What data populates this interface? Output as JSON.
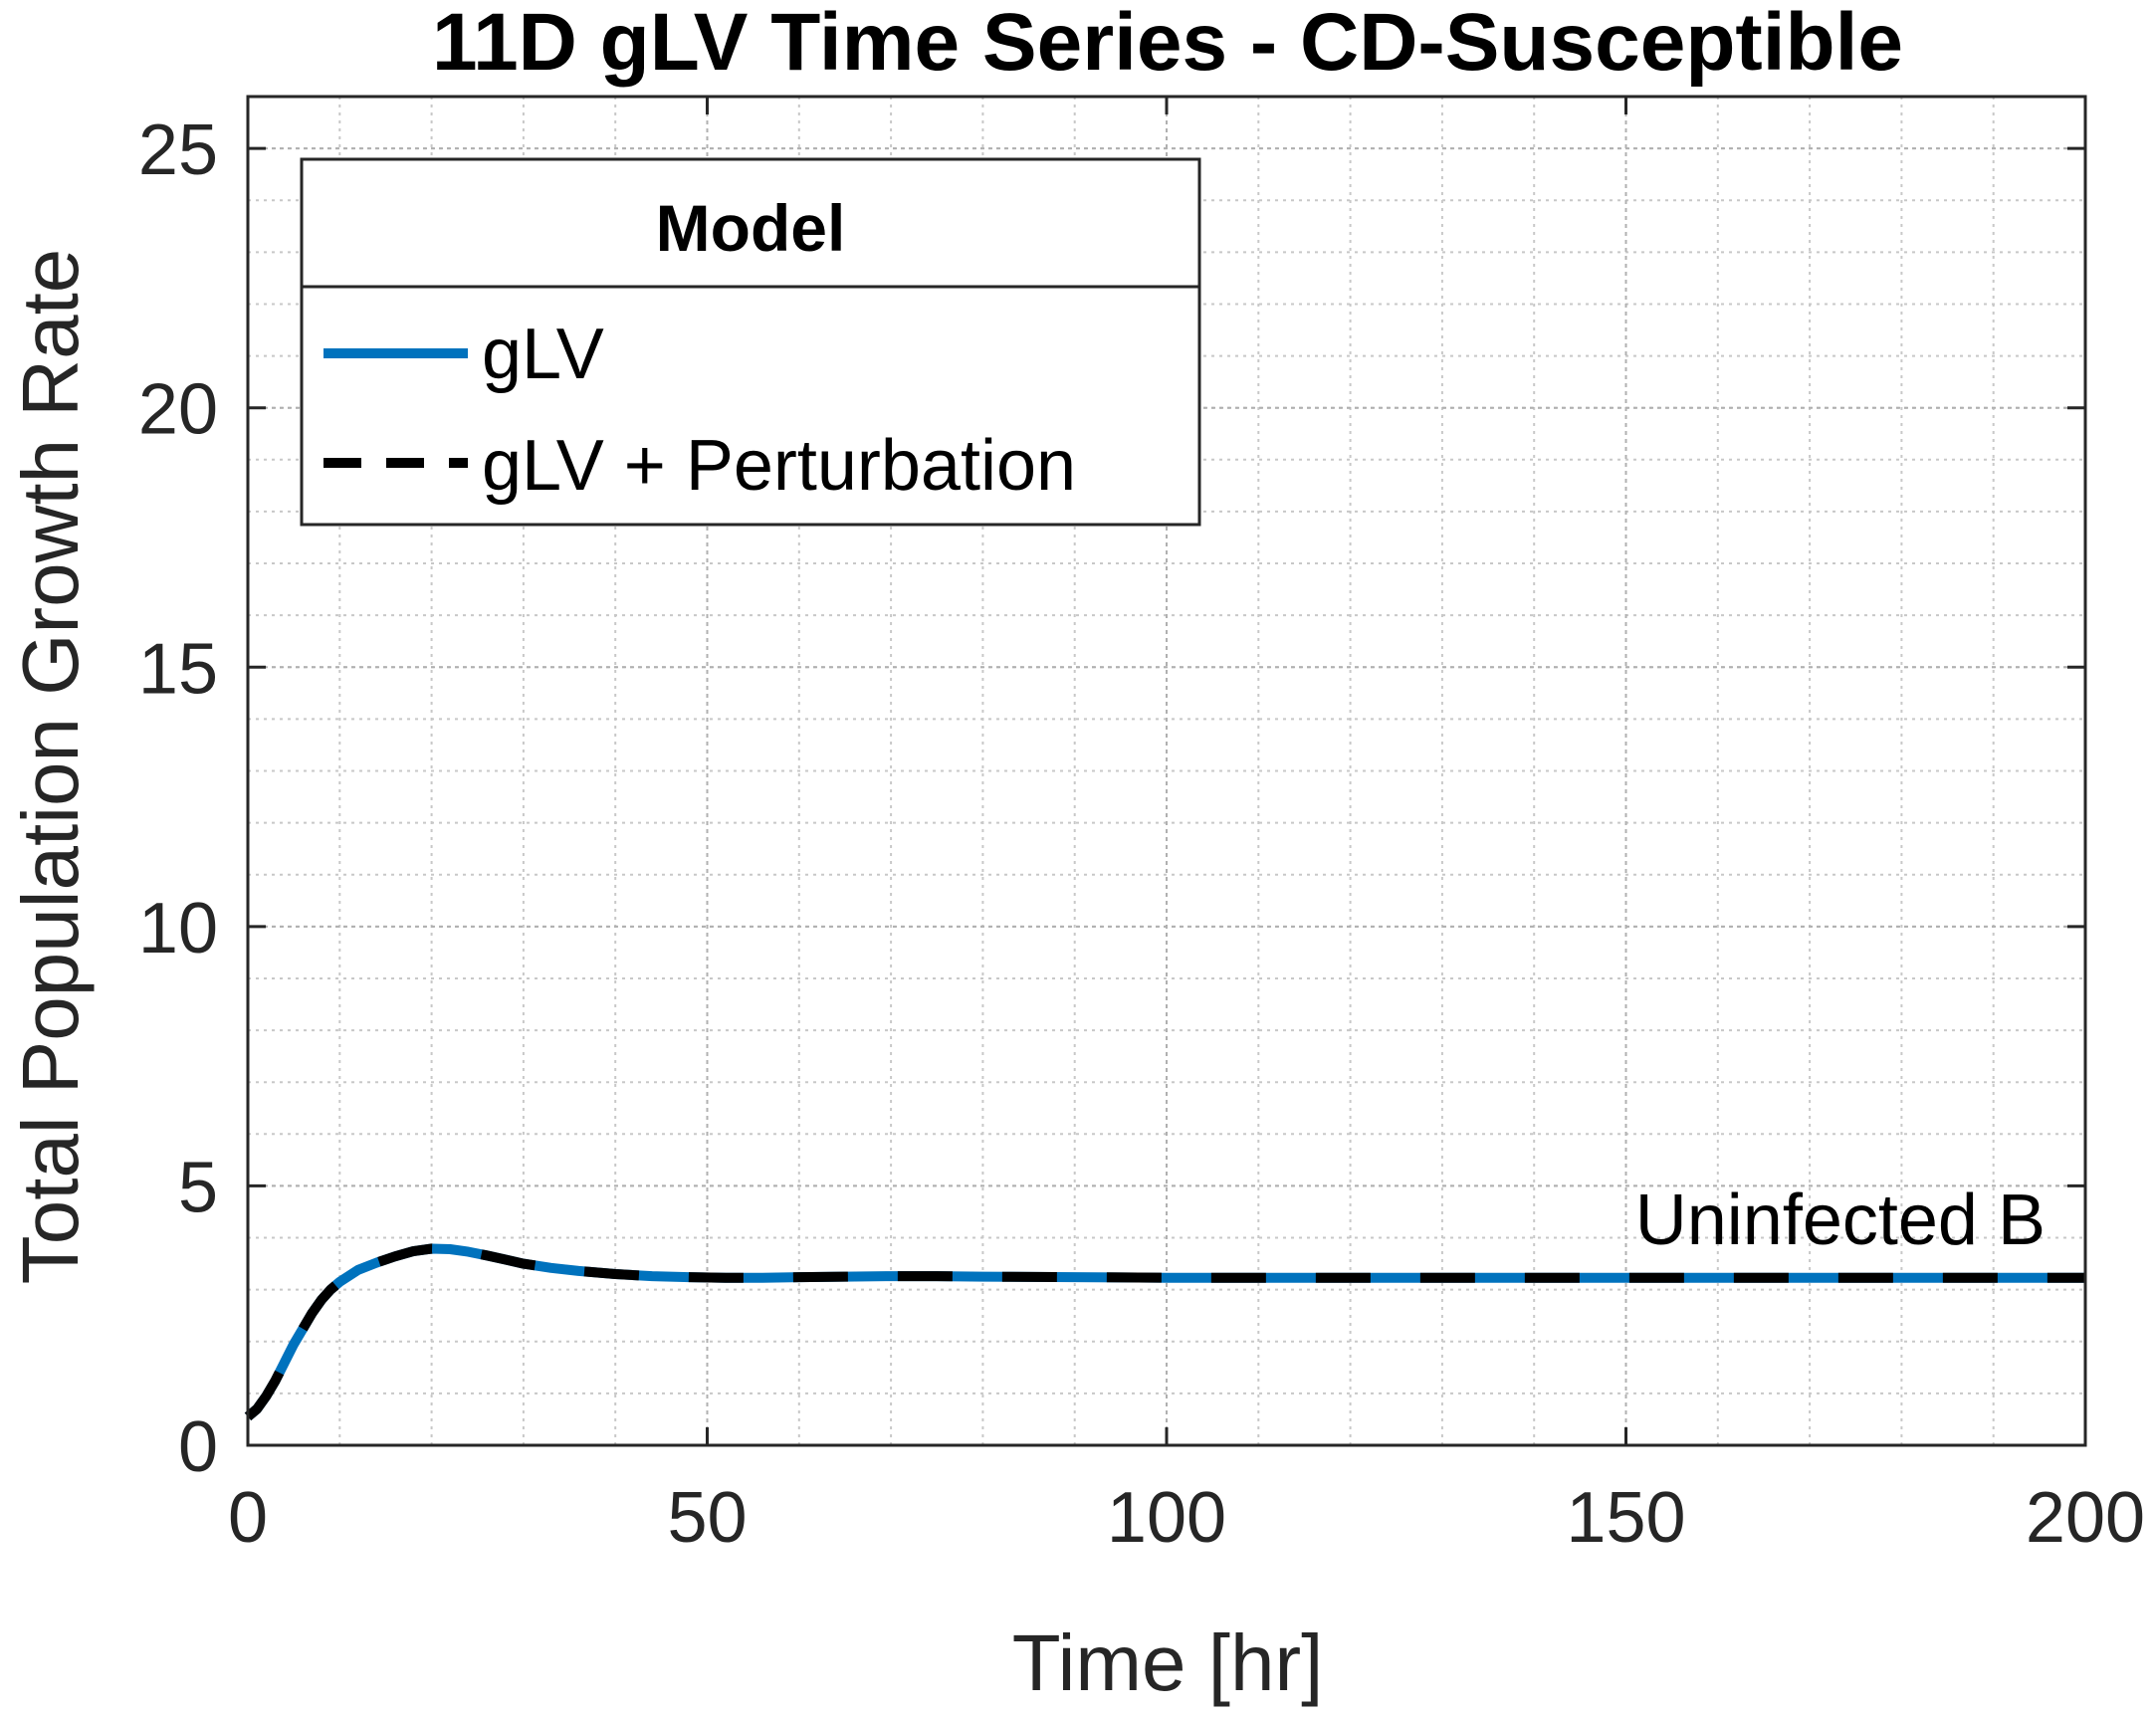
{
  "chart_data": {
    "type": "line",
    "title": "11D gLV Time Series - CD-Susceptible",
    "xlabel": "Time [hr]",
    "ylabel": "Total Population Growth Rate",
    "xlim": [
      0,
      200
    ],
    "ylim": [
      0,
      26
    ],
    "xticks": [
      0,
      50,
      100,
      150,
      200
    ],
    "yticks": [
      0,
      5,
      10,
      15,
      20,
      25
    ],
    "xtick_labels": [
      "0",
      "50",
      "100",
      "150",
      "200"
    ],
    "ytick_labels": [
      "0",
      "5",
      "10",
      "15",
      "20",
      "25"
    ],
    "grid": true,
    "minor_grid": true,
    "legend": {
      "title": "Model",
      "position": "top-left",
      "entries": [
        "gLV",
        "gLV + Perturbation"
      ]
    },
    "annotation": "Uninfected B",
    "series": [
      {
        "name": "gLV",
        "color": "#0072BD",
        "style": "solid",
        "x": [
          0,
          1,
          2,
          3,
          4,
          5,
          6,
          7,
          8,
          9,
          10,
          12,
          14,
          16,
          18,
          20,
          22,
          24,
          26,
          28,
          30,
          33,
          36,
          40,
          44,
          48,
          52,
          56,
          60,
          65,
          70,
          75,
          80,
          90,
          100,
          120,
          140,
          160,
          180,
          200
        ],
        "y": [
          0.55,
          0.7,
          0.95,
          1.25,
          1.6,
          1.95,
          2.25,
          2.55,
          2.8,
          3.0,
          3.15,
          3.38,
          3.52,
          3.64,
          3.74,
          3.79,
          3.78,
          3.73,
          3.66,
          3.58,
          3.5,
          3.42,
          3.36,
          3.3,
          3.26,
          3.24,
          3.23,
          3.23,
          3.24,
          3.25,
          3.26,
          3.26,
          3.25,
          3.24,
          3.23,
          3.23,
          3.23,
          3.23,
          3.23,
          3.23
        ]
      },
      {
        "name": "gLV + Perturbation",
        "color": "#000000",
        "style": "dashed",
        "x": [
          0,
          1,
          2,
          3,
          4,
          5,
          6,
          7,
          8,
          9,
          10,
          12,
          14,
          16,
          18,
          20,
          22,
          24,
          26,
          28,
          30,
          33,
          36,
          40,
          44,
          48,
          52,
          56,
          60,
          65,
          70,
          75,
          80,
          90,
          100,
          120,
          140,
          160,
          180,
          200
        ],
        "y": [
          0.55,
          0.7,
          0.95,
          1.25,
          1.6,
          1.95,
          2.25,
          2.55,
          2.8,
          3.0,
          3.15,
          3.38,
          3.52,
          3.64,
          3.74,
          3.79,
          3.78,
          3.73,
          3.66,
          3.58,
          3.5,
          3.42,
          3.36,
          3.3,
          3.26,
          3.24,
          3.23,
          3.23,
          3.24,
          3.25,
          3.26,
          3.26,
          3.25,
          3.24,
          3.23,
          3.23,
          3.23,
          3.23,
          3.23,
          3.23
        ]
      }
    ]
  }
}
